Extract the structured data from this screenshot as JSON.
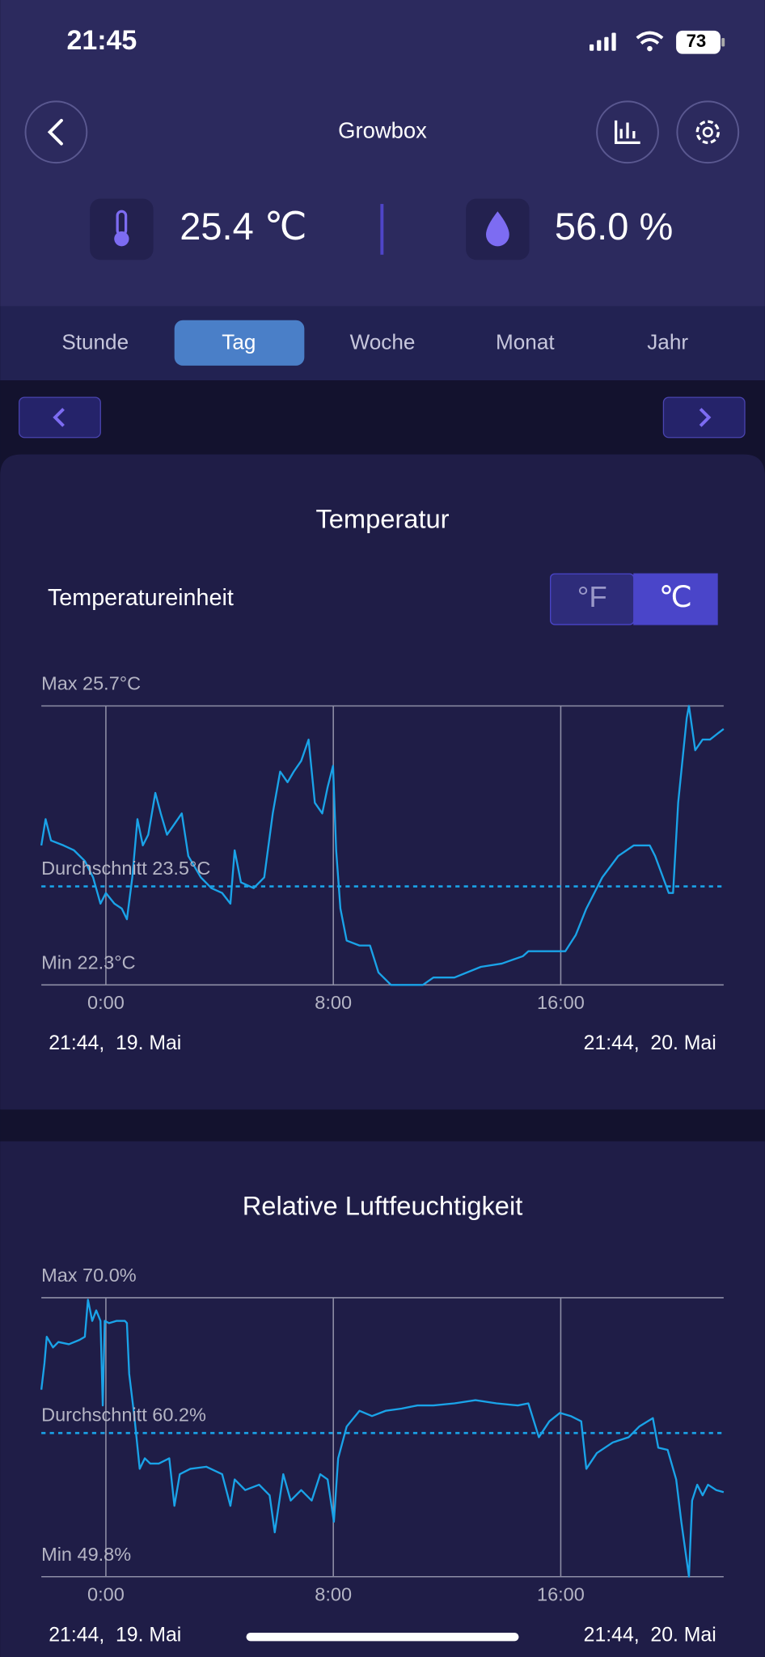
{
  "status_bar": {
    "time": "21:45",
    "battery": "73"
  },
  "header": {
    "title": "Growbox"
  },
  "readings": {
    "temperature": "25.4 ℃",
    "humidity": "56.0 %"
  },
  "tabs": [
    "Stunde",
    "Tag",
    "Woche",
    "Monat",
    "Jahr"
  ],
  "selected_tab": 1,
  "unit_toggle": {
    "label": "Temperatureinheit",
    "options": [
      "°F",
      "℃"
    ],
    "selected": 1
  },
  "chart_data": [
    {
      "type": "line",
      "title": "Temperatur",
      "color": "#1aa3e8",
      "grid": true,
      "x": [
        -2.27,
        -2.12,
        -1.93,
        -1.49,
        -1.12,
        -0.74,
        -0.45,
        -0.19,
        0.0,
        0.3,
        0.56,
        0.74,
        0.93,
        1.11,
        1.3,
        1.49,
        1.74,
        1.93,
        2.15,
        2.41,
        2.67,
        2.9,
        3.34,
        3.71,
        4.09,
        4.38,
        4.53,
        4.75,
        5.2,
        5.57,
        5.87,
        6.13,
        6.39,
        6.61,
        6.87,
        7.13,
        7.35,
        7.61,
        7.8,
        7.99,
        8.1,
        8.25,
        8.47,
        8.92,
        9.29,
        9.59,
        10.03,
        11.15,
        11.52,
        12.26,
        13.19,
        13.93,
        14.67,
        14.86,
        16.16,
        16.53,
        16.9,
        17.46,
        18.02,
        18.57,
        19.13,
        19.32,
        19.8,
        19.95,
        20.13,
        20.43,
        20.51,
        20.73,
        20.99,
        21.25,
        21.47,
        21.73
      ],
      "values": [
        24.0,
        24.32,
        24.06,
        24.0,
        23.94,
        23.81,
        23.61,
        23.29,
        23.42,
        23.29,
        23.23,
        23.1,
        23.61,
        24.32,
        24.0,
        24.13,
        24.64,
        24.39,
        24.13,
        24.26,
        24.39,
        23.87,
        23.61,
        23.48,
        23.42,
        23.29,
        23.94,
        23.55,
        23.48,
        23.61,
        24.39,
        24.9,
        24.77,
        24.9,
        25.03,
        25.29,
        24.52,
        24.39,
        24.71,
        24.97,
        23.94,
        23.23,
        22.84,
        22.78,
        22.78,
        22.45,
        22.3,
        22.3,
        22.39,
        22.39,
        22.52,
        22.56,
        22.65,
        22.71,
        22.71,
        22.91,
        23.23,
        23.61,
        23.87,
        24.0,
        24.0,
        23.87,
        23.42,
        23.42,
        24.52,
        25.55,
        25.7,
        25.16,
        25.29,
        25.29,
        25.35,
        25.42
      ],
      "xlim": [
        -2.27,
        21.73
      ],
      "xticks": [
        {
          "value": 0,
          "label": "0:00"
        },
        {
          "value": 8,
          "label": "8:00"
        },
        {
          "value": 16,
          "label": "16:00"
        }
      ],
      "ylim": [
        22.3,
        25.7
      ],
      "yticks": [
        {
          "value": 25.7,
          "label": "Max 25.7°C"
        },
        {
          "value": 22.3,
          "label": "Min 22.3°C"
        }
      ],
      "reference_line": {
        "value": 23.5,
        "label": "Durchschnitt 23.5°C"
      },
      "start_label": "21:44,  19. Mai",
      "end_label": "21:44,  20. Mai"
    },
    {
      "type": "line",
      "title": "Relative Luftfeuchtigkeit",
      "color": "#1aa3e8",
      "grid": true,
      "x": [
        -2.27,
        -2.16,
        -2.08,
        -1.86,
        -1.67,
        -1.3,
        -0.93,
        -0.74,
        -0.63,
        -0.48,
        -0.34,
        -0.19,
        -0.11,
        -0.04,
        0.11,
        0.37,
        0.67,
        0.74,
        0.82,
        1.0,
        1.19,
        1.37,
        1.56,
        1.86,
        2.23,
        2.41,
        2.6,
        2.97,
        3.53,
        4.09,
        4.38,
        4.53,
        4.9,
        5.39,
        5.76,
        5.94,
        6.24,
        6.5,
        6.87,
        7.24,
        7.54,
        7.8,
        8.02,
        8.17,
        8.47,
        8.92,
        9.36,
        9.84,
        10.4,
        10.96,
        11.52,
        12.26,
        13.0,
        13.74,
        14.49,
        14.86,
        15.23,
        15.6,
        15.97,
        16.35,
        16.72,
        16.9,
        17.27,
        17.83,
        18.39,
        18.76,
        19.24,
        19.43,
        19.76,
        20.06,
        20.24,
        20.51,
        20.62,
        20.8,
        20.99,
        21.18,
        21.47,
        21.73
      ],
      "values": [
        63.34,
        65.26,
        67.17,
        66.4,
        66.79,
        66.63,
        66.94,
        67.17,
        69.85,
        68.32,
        69.08,
        68.32,
        62.2,
        68.32,
        68.16,
        68.32,
        68.32,
        68.16,
        64.49,
        61.43,
        57.61,
        58.37,
        57.99,
        57.99,
        58.37,
        54.93,
        57.22,
        57.61,
        57.76,
        57.22,
        54.93,
        56.84,
        56.07,
        56.46,
        55.69,
        53.01,
        57.22,
        55.31,
        56.07,
        55.31,
        57.22,
        56.84,
        53.78,
        58.37,
        60.67,
        61.81,
        61.43,
        61.81,
        61.97,
        62.2,
        62.2,
        62.35,
        62.58,
        62.35,
        62.2,
        62.35,
        59.9,
        61.05,
        61.66,
        61.43,
        61.05,
        57.61,
        58.75,
        59.52,
        59.9,
        60.67,
        61.28,
        59.14,
        58.98,
        56.84,
        53.78,
        49.8,
        55.31,
        56.46,
        55.69,
        56.46,
        56.07,
        55.92
      ],
      "xlim": [
        -2.27,
        21.73
      ],
      "xticks": [
        {
          "value": 0,
          "label": "0:00"
        },
        {
          "value": 8,
          "label": "8:00"
        },
        {
          "value": 16,
          "label": "16:00"
        }
      ],
      "ylim": [
        49.8,
        70.0
      ],
      "yticks": [
        {
          "value": 70.0,
          "label": "Max 70.0%"
        },
        {
          "value": 49.8,
          "label": "Min 49.8%"
        }
      ],
      "reference_line": {
        "value": 60.2,
        "label": "Durchschnitt 60.2%"
      },
      "start_label": "21:44,  19. Mai",
      "end_label": "21:44,  20. Mai"
    }
  ]
}
